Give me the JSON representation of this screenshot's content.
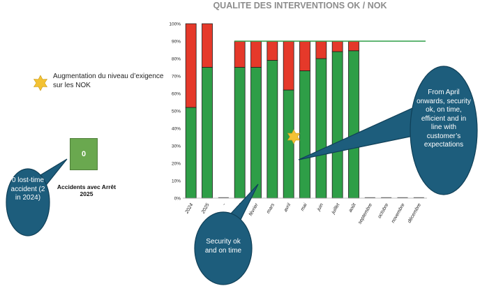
{
  "chart_data": {
    "type": "bar",
    "stacked": true,
    "title": "QUALITE DES INTERVENTIONS OK / NOK",
    "categories": [
      "2024",
      "2025",
      "-",
      "janvier",
      "février",
      "mars",
      "avril",
      "mai",
      "juin",
      "juillet",
      "août",
      "septembre",
      "octobre",
      "novembre",
      "décembre"
    ],
    "series": [
      {
        "values": [
          52,
          75,
          0,
          75,
          75,
          79,
          62,
          73,
          80,
          84,
          84.5,
          0,
          0,
          0,
          0
        ]
      },
      {
        "values": [
          48,
          25,
          0,
          15,
          15,
          11,
          28,
          17,
          10,
          6,
          5.5,
          0,
          0,
          0,
          0
        ]
      }
    ],
    "target_line": {
      "value": 90
    },
    "ylim": [
      0,
      100
    ],
    "ytick_step": 10,
    "ytick_suffix": "%",
    "grid": false,
    "colors": {
      "ok": "#2e9e47",
      "nok": "#e5392a",
      "target": "#2e9e47",
      "axis": "#a6a6a6",
      "bar_outline": "#1d1d1d"
    }
  },
  "legend": {
    "star_note": "Augmentation du niveau d’exigence sur les NOK",
    "star_icon": "star-icon",
    "star_color": "#f3c233"
  },
  "kpi": {
    "value": "0",
    "caption": "Accidents avec Arrêt 2025",
    "color": "#6aa84f"
  },
  "callouts": {
    "right": "From April onwards, security ok, on time, efficient and in line with customer’s expectations",
    "left": "0 lost-time accident (2 in 2024)",
    "bottom": "Security ok and on time",
    "bubble_color": "#1d5d7c",
    "bubble_border": "#0f3f57"
  }
}
